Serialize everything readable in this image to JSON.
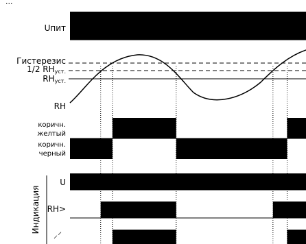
{
  "top_label_fragment": "...",
  "labels": {
    "supply": "Uпит",
    "hysteresis": "Гистерезис",
    "half_setpoint_main": "1/2 RH",
    "half_setpoint_sub": "уст.",
    "setpoint_main": "RH",
    "setpoint_sub": "уст.",
    "rh": "RH",
    "brown_yellow_1": "коричн.",
    "brown_yellow_2": "желтый",
    "brown_black_1": "коричн.",
    "brown_black_2": "черный",
    "indication": "Индикация",
    "ind_u": "U",
    "ind_rh": "RH>",
    "ind_relay": "⸝⸍"
  },
  "signals": {
    "supply": [
      [
        0,
        1
      ]
    ],
    "brown_yellow": [
      [
        0.18,
        0.45
      ],
      [
        0.92,
        1
      ]
    ],
    "brown_black": [
      [
        0,
        0.18
      ],
      [
        0.45,
        0.92
      ]
    ],
    "ind_u": [
      [
        0,
        1
      ]
    ],
    "ind_rh": [
      [
        0.13,
        0.45
      ],
      [
        0.86,
        1
      ]
    ],
    "ind_relay": [
      [
        0.18,
        0.45
      ],
      [
        0.92,
        1
      ]
    ]
  },
  "event_times": [
    0.13,
    0.18,
    0.45,
    0.86,
    0.92
  ],
  "colors": {
    "ink": "#000000",
    "background": "#ffffff"
  }
}
